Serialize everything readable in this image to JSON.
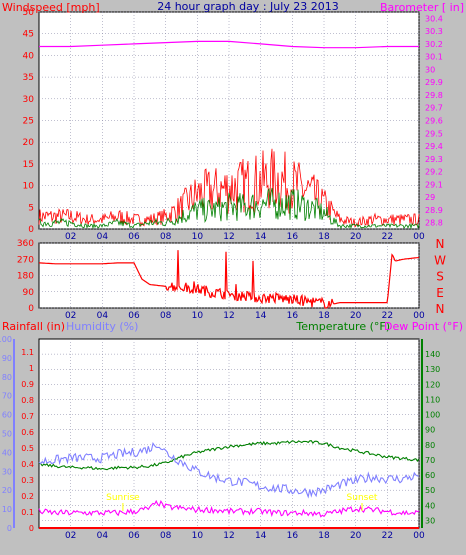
{
  "colors": {
    "background": "#c0c0c0",
    "plot_background": "#ffffff",
    "wind": "#ff0000",
    "gust": "#ff0000",
    "avg_wind": "#008000",
    "barometer": "#ff00ff",
    "direction": "#ff0000",
    "rainfall": "#ff0000",
    "humidity": "#8080ff",
    "temperature": "#008000",
    "dew_point": "#ff00ff",
    "title": "#0000a0",
    "sun_label": "#ffff00",
    "grid": "#8080a0"
  },
  "chart_data": [
    {
      "id": "wind_barometer",
      "type": "line",
      "title": "24 hour graph day : July 23 2013",
      "ylabel_left": "Windspeed [mph]",
      "ylabel_right": "Barometer [ in]",
      "x_ticks": [
        "02",
        "04",
        "06",
        "08",
        "10",
        "12",
        "14",
        "16",
        "18",
        "20",
        "22",
        "00"
      ],
      "y_left_ticks": [
        "0",
        "5",
        "10",
        "15",
        "20",
        "25",
        "30",
        "35",
        "40",
        "45",
        "50"
      ],
      "y_right_ticks": [
        "28.8",
        "28.9",
        "29",
        "29.1",
        "29.2",
        "29.3",
        "29.4",
        "29.5",
        "29.6",
        "29.7",
        "29.8",
        "29.9",
        "30",
        "30.1",
        "30.2",
        "30.3",
        "30.4"
      ],
      "ylim_left": [
        0,
        50
      ],
      "ylim_right": [
        28.75,
        30.45
      ],
      "xlim": [
        0,
        24
      ],
      "series": [
        {
          "name": "Windspeed",
          "color": "#ff0000",
          "axis": "left",
          "style": "envelope",
          "x": [
            0,
            1,
            2,
            3,
            4,
            5,
            6,
            7,
            8,
            9,
            10,
            11,
            12,
            13,
            14,
            15,
            16,
            17,
            18,
            19,
            20,
            21,
            22,
            23,
            24
          ],
          "y": [
            4,
            4,
            4,
            3,
            3,
            4,
            3,
            3,
            4,
            7,
            11,
            12,
            13,
            14,
            15,
            16,
            14,
            12,
            8,
            3,
            2,
            3,
            3,
            3,
            3
          ]
        },
        {
          "name": "Avg Wind",
          "color": "#008000",
          "axis": "left",
          "style": "envelope",
          "x": [
            0,
            1,
            2,
            3,
            4,
            5,
            6,
            7,
            8,
            9,
            10,
            11,
            12,
            13,
            14,
            15,
            16,
            17,
            18,
            19,
            20,
            21,
            22,
            23,
            24
          ],
          "y": [
            2,
            2,
            2,
            1,
            1,
            2,
            1,
            2,
            2,
            4,
            6,
            6,
            7,
            7,
            8,
            8,
            8,
            7,
            5,
            1,
            1,
            1,
            1,
            1,
            1
          ]
        },
        {
          "name": "Barometer",
          "color": "#ff00ff",
          "axis": "right",
          "style": "line",
          "x": [
            0,
            2,
            4,
            6,
            8,
            10,
            12,
            14,
            16,
            18,
            20,
            22,
            24
          ],
          "y": [
            30.18,
            30.18,
            30.19,
            30.2,
            30.21,
            30.22,
            30.22,
            30.2,
            30.18,
            30.17,
            30.17,
            30.18,
            30.18
          ]
        }
      ]
    },
    {
      "id": "wind_direction",
      "type": "line",
      "y_left_ticks": [
        "0",
        "90",
        "180",
        "270",
        "360"
      ],
      "y_right_ticks": [
        "N",
        "W",
        "S",
        "E",
        "N"
      ],
      "ylim": [
        0,
        360
      ],
      "x_ticks": [
        "02",
        "04",
        "06",
        "08",
        "10",
        "12",
        "14",
        "16",
        "18",
        "20",
        "22",
        "00"
      ],
      "xlim": [
        0,
        24
      ],
      "series": [
        {
          "name": "Wind Direction",
          "color": "#ff0000",
          "x": [
            0,
            1,
            2,
            3,
            4,
            5,
            6,
            6.5,
            7,
            8,
            9,
            10,
            11,
            12,
            13,
            14,
            15,
            16,
            17,
            18,
            18.5,
            19,
            20,
            21,
            22,
            22.3,
            22.5,
            23,
            24
          ],
          "y": [
            250,
            245,
            245,
            245,
            245,
            250,
            250,
            160,
            130,
            120,
            110,
            100,
            80,
            70,
            60,
            50,
            50,
            40,
            30,
            20,
            20,
            30,
            30,
            30,
            30,
            300,
            260,
            270,
            280
          ]
        }
      ]
    },
    {
      "id": "temp_humidity_rain",
      "type": "line",
      "ylabel_left": "Rainfall (in)",
      "ylabel_left2": "Humidity (%)",
      "ylabel_right": "Temperature (°F)",
      "ylabel_right2": "Dew Point (°F)",
      "y_rain_ticks": [
        "0",
        "0.1",
        "0.2",
        "0.3",
        "0.4",
        "0.5",
        "0.6",
        "0.7",
        "0.8",
        "0.9",
        "1",
        "1.1"
      ],
      "y_humidity_ticks": [
        "0",
        "10",
        "20",
        "30",
        "40",
        "50",
        "60",
        "70",
        "80",
        "90",
        "100"
      ],
      "y_temp_ticks": [
        "30",
        "40",
        "50",
        "60",
        "70",
        "80",
        "90",
        "100",
        "110",
        "120",
        "130",
        "140"
      ],
      "ylim_temp": [
        25,
        150
      ],
      "ylim_humidity": [
        0,
        100
      ],
      "x_ticks": [
        "02",
        "04",
        "06",
        "08",
        "10",
        "12",
        "14",
        "16",
        "18",
        "20",
        "22",
        "00"
      ],
      "xlim": [
        0,
        24
      ],
      "annotations": [
        "Sunrise",
        "Sunset"
      ],
      "annotation_x": [
        5.3,
        20.4
      ],
      "series": [
        {
          "name": "Temperature",
          "color": "#008000",
          "axis": "temp",
          "x": [
            0,
            1,
            2,
            3,
            4,
            5,
            6,
            7,
            8,
            9,
            10,
            11,
            12,
            13,
            14,
            15,
            16,
            17,
            18,
            19,
            20,
            21,
            22,
            23,
            24
          ],
          "y": [
            67,
            66,
            65,
            65,
            64,
            65,
            65,
            66,
            68,
            72,
            75,
            77,
            79,
            80,
            81,
            81,
            82,
            82,
            81,
            78,
            76,
            74,
            72,
            71,
            70
          ]
        },
        {
          "name": "Humidity",
          "color": "#8080ff",
          "axis": "humidity",
          "x": [
            0,
            1,
            2,
            3,
            4,
            5,
            6,
            7,
            7.5,
            8,
            9,
            10,
            11,
            12,
            13,
            14,
            15,
            16,
            17,
            18,
            19,
            20,
            21,
            22,
            23,
            24
          ],
          "y": [
            35,
            36,
            37,
            37,
            37,
            39,
            40,
            42,
            45,
            40,
            35,
            30,
            27,
            25,
            24,
            22,
            21,
            20,
            19,
            20,
            23,
            25,
            27,
            26,
            26,
            28
          ]
        },
        {
          "name": "Dew Point",
          "color": "#ff00ff",
          "axis": "temp",
          "x": [
            0,
            1,
            2,
            3,
            4,
            5,
            6,
            7,
            7.5,
            8,
            9,
            10,
            11,
            12,
            13,
            14,
            15,
            16,
            17,
            18,
            19,
            20,
            21,
            22,
            23,
            24
          ],
          "y": [
            36,
            35,
            35,
            35,
            35,
            35,
            36,
            38,
            42,
            39,
            38,
            37,
            37,
            36,
            36,
            36,
            35,
            35,
            35,
            34,
            36,
            38,
            37,
            36,
            35,
            35
          ]
        },
        {
          "name": "Rainfall",
          "color": "#ff0000",
          "axis": "rain",
          "x": [
            0,
            24
          ],
          "y": [
            0,
            0
          ]
        }
      ]
    }
  ]
}
